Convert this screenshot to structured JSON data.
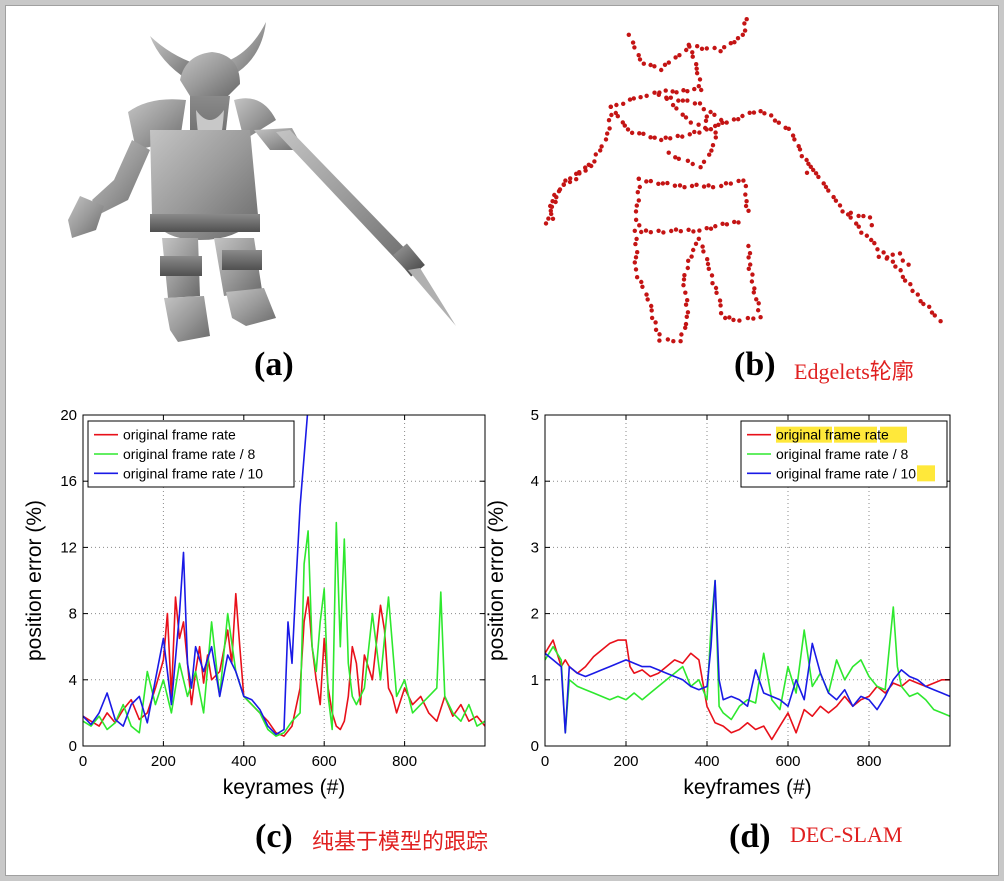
{
  "panels": [
    {
      "label": "(a)",
      "caption": ""
    },
    {
      "label": "(b)",
      "caption": "Edgelets轮廓"
    },
    {
      "label": "(c)",
      "caption": "纯基于模型的跟踪"
    },
    {
      "label": "(d)",
      "caption": "DEC-SLAM"
    }
  ],
  "colors": {
    "red": "#e8101a",
    "green": "#2ee82e",
    "blue": "#1a1ae6",
    "highlight": "#ffe83a",
    "caption": "#e02020",
    "dots": "#c41414",
    "model_gray": "#9a9a9a"
  },
  "chart_data": [
    {
      "type": "line",
      "panel": "(c)",
      "xlabel": "keyrames (#)",
      "ylabel": "position error (%)",
      "xlim": [
        0,
        1000
      ],
      "ylim": [
        0,
        20
      ],
      "xticks": [
        0,
        200,
        400,
        600,
        800
      ],
      "yticks": [
        0,
        4,
        8,
        12,
        16,
        20
      ],
      "grid": true,
      "legend_position": "top-left",
      "series": [
        {
          "name": "original frame rate",
          "color": "#e8101a",
          "x": [
            0,
            20,
            40,
            60,
            80,
            100,
            120,
            140,
            160,
            180,
            200,
            210,
            220,
            230,
            240,
            250,
            260,
            270,
            280,
            290,
            300,
            310,
            320,
            340,
            360,
            370,
            380,
            390,
            400,
            420,
            440,
            460,
            480,
            500,
            520,
            540,
            550,
            560,
            570,
            580,
            590,
            600,
            610,
            620,
            630,
            640,
            650,
            660,
            670,
            680,
            690,
            700,
            720,
            740,
            750,
            760,
            770,
            780,
            800,
            820,
            840,
            860,
            880,
            900,
            920,
            940,
            960,
            980,
            1000
          ],
          "y": [
            1.8,
            1.5,
            1.2,
            2.0,
            1.4,
            2.2,
            2.8,
            1.6,
            2.0,
            3.5,
            5.2,
            8.0,
            3.0,
            9.0,
            6.5,
            7.5,
            5.0,
            2.5,
            4.5,
            6.0,
            3.8,
            5.5,
            4.0,
            4.5,
            7.0,
            5.0,
            9.2,
            6.0,
            3.0,
            2.5,
            2.0,
            1.5,
            0.8,
            0.6,
            1.2,
            3.5,
            7.5,
            9.0,
            6.0,
            4.0,
            2.5,
            6.5,
            3.5,
            2.0,
            1.2,
            1.0,
            1.5,
            3.0,
            6.0,
            5.0,
            2.5,
            5.5,
            4.0,
            8.5,
            7.0,
            3.5,
            3.0,
            2.0,
            3.5,
            2.5,
            3.0,
            2.0,
            1.5,
            3.0,
            1.8,
            2.5,
            1.5,
            1.8,
            1.2
          ]
        },
        {
          "name": "original frame rate / 8",
          "color": "#2ee82e",
          "x": [
            0,
            20,
            40,
            60,
            80,
            100,
            120,
            140,
            160,
            180,
            200,
            220,
            240,
            260,
            280,
            300,
            320,
            340,
            360,
            380,
            400,
            420,
            440,
            460,
            480,
            500,
            520,
            540,
            550,
            560,
            570,
            580,
            590,
            600,
            610,
            620,
            630,
            640,
            650,
            660,
            670,
            680,
            700,
            720,
            740,
            760,
            780,
            800,
            820,
            840,
            860,
            880,
            890,
            900,
            920,
            940,
            960,
            980,
            1000
          ],
          "y": [
            1.5,
            1.2,
            1.8,
            1.0,
            1.4,
            2.5,
            1.2,
            0.8,
            4.5,
            2.5,
            4.0,
            2.0,
            5.0,
            3.0,
            4.5,
            2.0,
            7.5,
            3.0,
            8.0,
            4.5,
            3.0,
            2.5,
            2.0,
            1.0,
            0.6,
            0.8,
            1.5,
            2.0,
            11.0,
            13.0,
            6.0,
            4.5,
            7.5,
            9.5,
            3.0,
            1.0,
            13.5,
            6.0,
            12.5,
            5.0,
            3.0,
            2.5,
            3.5,
            8.0,
            4.0,
            9.0,
            3.0,
            4.0,
            2.0,
            2.5,
            3.0,
            3.5,
            9.3,
            3.0,
            2.0,
            1.5,
            2.5,
            1.2,
            1.5
          ]
        },
        {
          "name": "original frame rate / 10",
          "color": "#1a1ae6",
          "x": [
            0,
            20,
            40,
            60,
            80,
            100,
            120,
            140,
            160,
            180,
            200,
            220,
            240,
            250,
            260,
            270,
            280,
            300,
            320,
            340,
            360,
            380,
            400,
            420,
            440,
            460,
            480,
            500,
            510,
            520,
            530,
            540,
            560,
            580
          ],
          "y": [
            1.8,
            1.3,
            2.0,
            3.2,
            1.6,
            1.2,
            2.5,
            3.0,
            1.4,
            4.0,
            6.5,
            2.5,
            8.0,
            11.7,
            5.0,
            3.5,
            6.0,
            4.5,
            6.0,
            3.0,
            5.5,
            4.5,
            3.0,
            2.8,
            2.2,
            1.2,
            0.7,
            1.0,
            7.5,
            5.0,
            10.0,
            14.5,
            20.5,
            21.0
          ]
        }
      ]
    },
    {
      "type": "line",
      "panel": "(d)",
      "xlabel": "keyframes (#)",
      "ylabel": "position error (%)",
      "xlim": [
        0,
        1000
      ],
      "ylim": [
        0,
        5
      ],
      "xticks": [
        0,
        200,
        400,
        600,
        800
      ],
      "yticks": [
        0,
        1,
        2,
        3,
        4,
        5
      ],
      "grid": true,
      "legend_position": "top-right",
      "series": [
        {
          "name": "original frame rate",
          "color": "#e8101a",
          "x": [
            0,
            10,
            20,
            30,
            40,
            50,
            60,
            80,
            100,
            120,
            140,
            160,
            180,
            200,
            210,
            220,
            240,
            260,
            280,
            300,
            320,
            340,
            360,
            380,
            400,
            420,
            440,
            460,
            480,
            500,
            520,
            540,
            560,
            580,
            600,
            620,
            640,
            660,
            680,
            700,
            720,
            740,
            760,
            780,
            800,
            820,
            840,
            860,
            880,
            900,
            920,
            940,
            960,
            980,
            1000
          ],
          "y": [
            1.4,
            1.5,
            1.6,
            1.4,
            1.2,
            1.3,
            1.2,
            1.1,
            1.2,
            1.35,
            1.45,
            1.55,
            1.6,
            1.6,
            1.2,
            1.1,
            1.15,
            1.05,
            1.1,
            1.2,
            1.3,
            1.25,
            1.4,
            1.3,
            0.6,
            0.35,
            0.3,
            0.2,
            0.25,
            0.35,
            0.25,
            0.3,
            0.1,
            0.3,
            0.5,
            0.2,
            0.55,
            0.45,
            0.6,
            0.5,
            0.6,
            0.75,
            0.6,
            0.7,
            0.75,
            0.9,
            0.8,
            0.95,
            0.9,
            1.0,
            0.95,
            0.9,
            0.95,
            1.0,
            1.0
          ]
        },
        {
          "name": "original frame rate / 8",
          "color": "#2ee82e",
          "x": [
            0,
            20,
            40,
            50,
            60,
            80,
            100,
            120,
            140,
            160,
            180,
            200,
            220,
            240,
            260,
            280,
            300,
            320,
            340,
            360,
            380,
            400,
            410,
            420,
            430,
            440,
            460,
            480,
            500,
            520,
            540,
            560,
            580,
            600,
            620,
            640,
            660,
            680,
            700,
            720,
            740,
            760,
            780,
            800,
            820,
            840,
            860,
            870,
            880,
            900,
            920,
            940,
            960,
            980,
            1000
          ],
          "y": [
            1.3,
            1.5,
            1.3,
            0.2,
            1.0,
            0.9,
            0.85,
            0.8,
            0.75,
            0.7,
            0.75,
            0.7,
            0.8,
            0.7,
            0.8,
            0.9,
            1.0,
            1.1,
            1.2,
            0.9,
            1.0,
            0.7,
            1.8,
            2.5,
            0.6,
            0.5,
            0.4,
            0.6,
            0.7,
            0.65,
            1.4,
            0.7,
            0.55,
            1.2,
            0.8,
            1.75,
            0.9,
            1.1,
            0.8,
            1.3,
            1.0,
            1.2,
            1.3,
            1.05,
            0.9,
            0.85,
            2.1,
            1.2,
            0.9,
            0.75,
            0.8,
            0.7,
            0.55,
            0.5,
            0.45
          ]
        },
        {
          "name": "original frame rate / 10",
          "color": "#1a1ae6",
          "x": [
            0,
            20,
            40,
            50,
            60,
            80,
            100,
            120,
            140,
            160,
            180,
            200,
            220,
            240,
            260,
            280,
            300,
            320,
            340,
            360,
            380,
            400,
            410,
            420,
            430,
            440,
            460,
            480,
            500,
            520,
            540,
            560,
            580,
            600,
            620,
            640,
            660,
            680,
            700,
            720,
            740,
            760,
            780,
            800,
            820,
            840,
            860,
            880,
            900,
            920,
            940,
            960,
            980,
            1000
          ],
          "y": [
            1.4,
            1.3,
            1.2,
            0.2,
            1.2,
            1.1,
            1.05,
            1.1,
            1.15,
            1.2,
            1.25,
            1.3,
            1.25,
            1.2,
            1.2,
            1.15,
            1.1,
            1.05,
            1.0,
            0.9,
            0.85,
            0.9,
            1.5,
            2.5,
            1.0,
            0.7,
            0.75,
            0.7,
            0.6,
            1.15,
            0.8,
            0.75,
            0.7,
            0.6,
            1.0,
            0.7,
            1.55,
            1.1,
            0.8,
            0.7,
            0.85,
            0.6,
            0.75,
            0.7,
            0.55,
            0.75,
            1.0,
            1.15,
            1.05,
            1.0,
            0.9,
            0.85,
            0.8,
            0.75
          ]
        }
      ]
    }
  ]
}
